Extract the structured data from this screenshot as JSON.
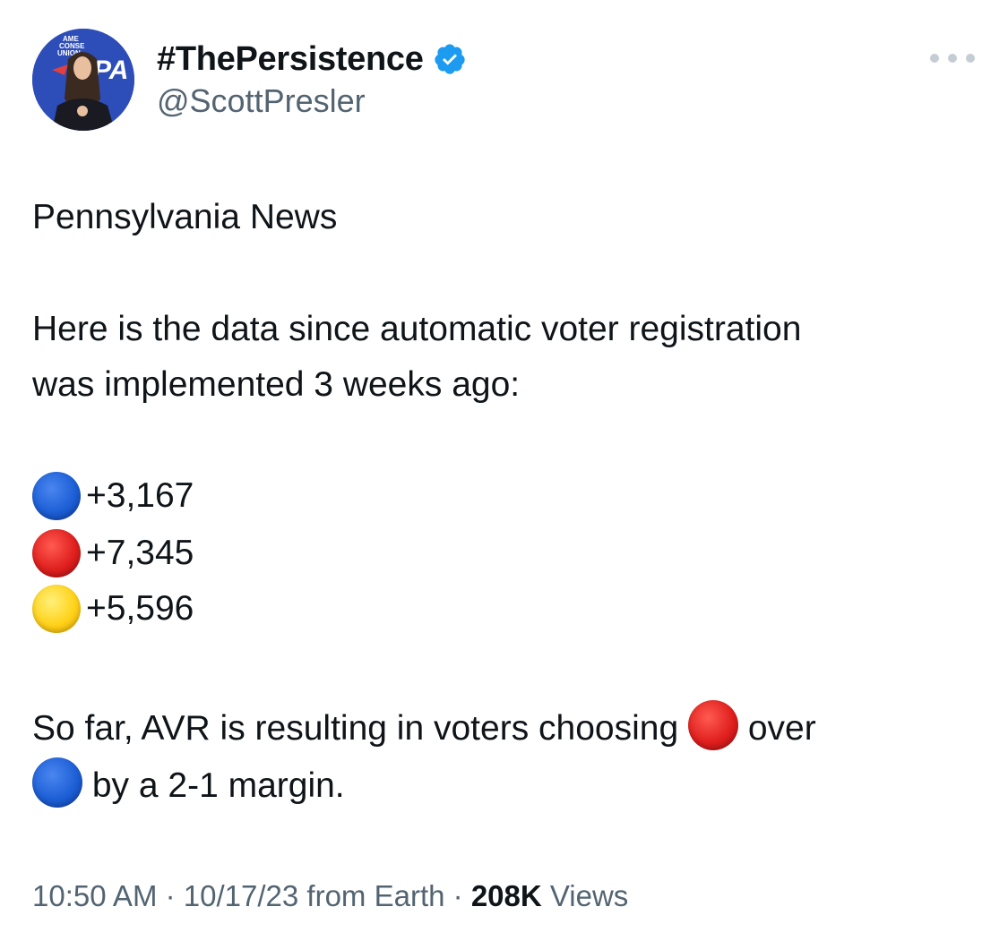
{
  "author": {
    "display_name": "#ThePersistence",
    "handle": "@ScottPresler",
    "verified_icon": "verified-badge-icon",
    "avatar_icon": "profile-photo",
    "avatar_text": [
      "AME",
      "CONSE",
      "UNION",
      "PA"
    ]
  },
  "colors": {
    "blue": "#1d5fd6",
    "red": "#e0201e",
    "yellow": "#ffd21a",
    "verified": "#1d9bf0",
    "secondary_text": "#536471"
  },
  "tweet": {
    "line1": "Pennsylvania News",
    "line2a": "Here is the data since automatic voter registration",
    "line2b": "was implemented 3 weeks ago:",
    "stats": [
      {
        "color_name": "blue-circle-emoji",
        "value": "+3,167"
      },
      {
        "color_name": "red-circle-emoji",
        "value": "+7,345"
      },
      {
        "color_name": "yellow-circle-emoji",
        "value": "+5,596"
      }
    ],
    "conclusion_part1": "So far, AVR is resulting in voters choosing",
    "conclusion_part2": "over",
    "conclusion_part3": "by a 2-1 margin."
  },
  "footer": {
    "time": "10:50 AM",
    "separator": "·",
    "date": "10/17/23",
    "source": "from Earth",
    "views_count": "208K",
    "views_label": "Views"
  },
  "more_icon": "more-options-icon"
}
